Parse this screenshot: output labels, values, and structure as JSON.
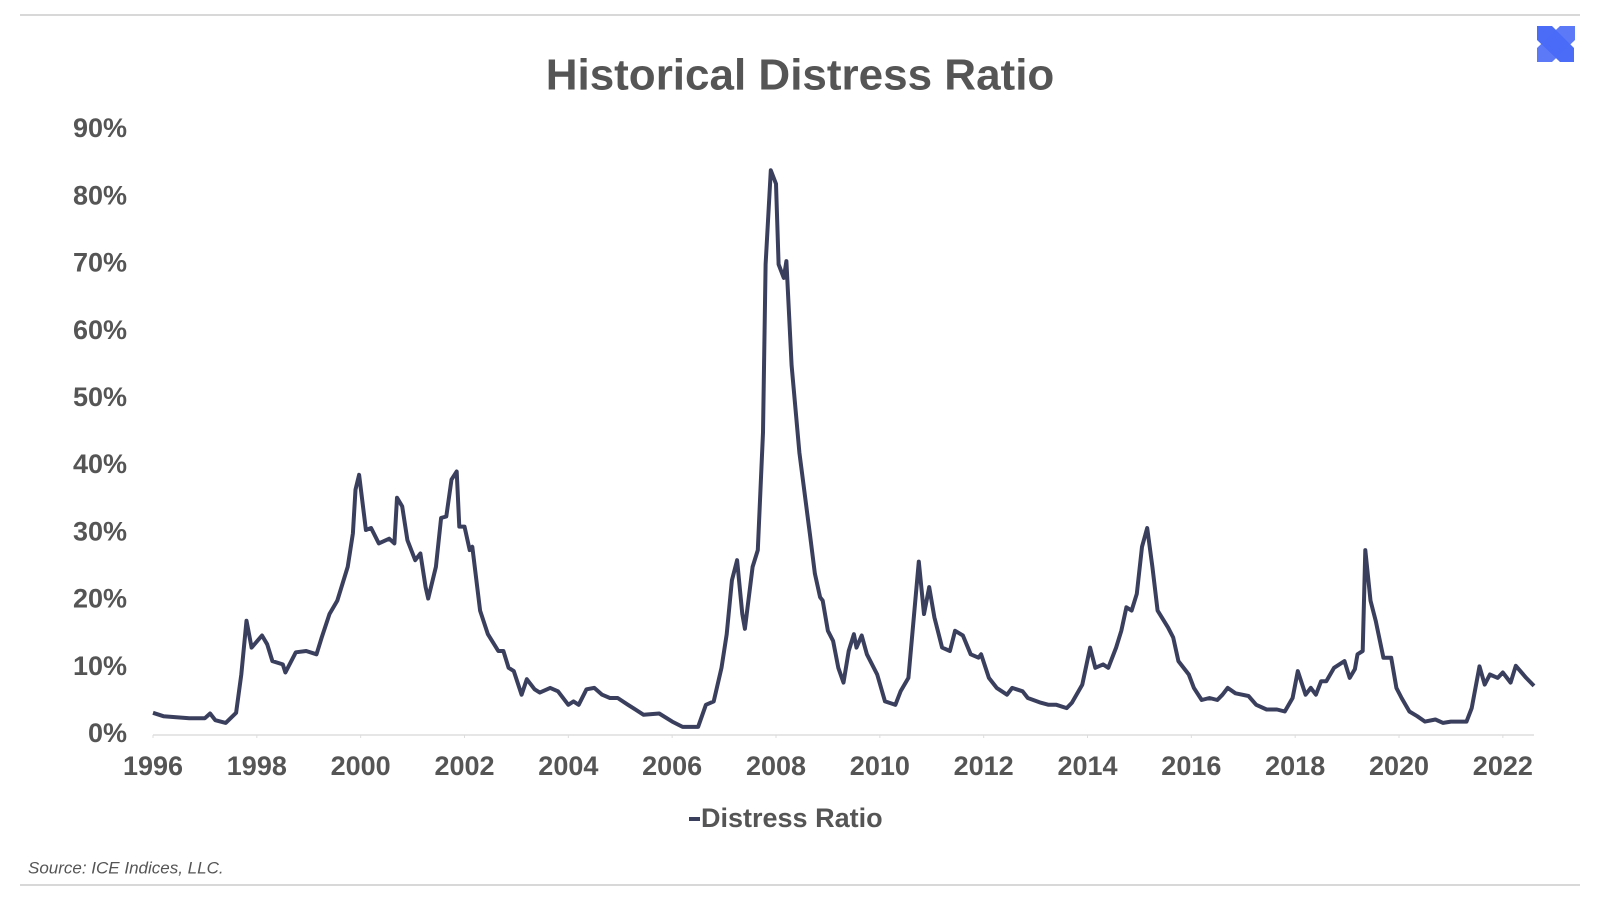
{
  "chart_data": {
    "type": "line",
    "title": "Historical Distress Ratio",
    "source": "Source: ICE Indices, LLC.",
    "series": [
      {
        "name": "Distress Ratio",
        "color": "#3b3f5e",
        "x": [
          1996.0,
          1996.2,
          1996.7,
          1997.0,
          1997.1,
          1997.2,
          1997.4,
          1997.6,
          1997.7,
          1997.8,
          1997.9,
          1998.1,
          1998.2,
          1998.3,
          1998.5,
          1998.55,
          1998.75,
          1998.95,
          1999.15,
          1999.25,
          1999.4,
          1999.55,
          1999.75,
          1999.85,
          1999.9,
          1999.97,
          2000.1,
          2000.2,
          2000.35,
          2000.55,
          2000.65,
          2000.7,
          2000.8,
          2000.9,
          2001.05,
          2001.15,
          2001.25,
          2001.3,
          2001.45,
          2001.55,
          2001.65,
          2001.75,
          2001.85,
          2001.9,
          2002.0,
          2002.1,
          2002.15,
          2002.3,
          2002.45,
          2002.65,
          2002.75,
          2002.85,
          2002.95,
          2003.1,
          2003.2,
          2003.35,
          2003.45,
          2003.65,
          2003.8,
          2004.0,
          2004.1,
          2004.2,
          2004.35,
          2004.5,
          2004.65,
          2004.8,
          2004.95,
          2005.15,
          2005.45,
          2005.75,
          2006.0,
          2006.2,
          2006.5,
          2006.65,
          2006.8,
          2006.95,
          2007.05,
          2007.15,
          2007.25,
          2007.35,
          2007.4,
          2007.55,
          2007.65,
          2007.75,
          2007.8,
          2007.9,
          2008.0,
          2008.05,
          2008.15,
          2008.2,
          2008.3,
          2008.45,
          2008.6,
          2008.65,
          2008.75,
          2008.85,
          2008.9,
          2009.0,
          2009.1,
          2009.2,
          2009.3,
          2009.4,
          2009.5,
          2009.55,
          2009.65,
          2009.75,
          2009.95,
          2010.1,
          2010.3,
          2010.4,
          2010.55,
          2010.75,
          2010.85,
          2010.95,
          2011.05,
          2011.2,
          2011.35,
          2011.45,
          2011.6,
          2011.75,
          2011.9,
          2011.95,
          2012.1,
          2012.25,
          2012.45,
          2012.55,
          2012.75,
          2012.85,
          2013.1,
          2013.25,
          2013.4,
          2013.6,
          2013.7,
          2013.9,
          2014.05,
          2014.15,
          2014.3,
          2014.4,
          2014.55,
          2014.65,
          2014.75,
          2014.85,
          2014.95,
          2015.05,
          2015.15,
          2015.25,
          2015.35,
          2015.55,
          2015.65,
          2015.75,
          2015.95,
          2016.05,
          2016.2,
          2016.35,
          2016.5,
          2016.6,
          2016.7,
          2016.85,
          2017.1,
          2017.25,
          2017.45,
          2017.65,
          2017.8,
          2017.95,
          2018.05,
          2018.2,
          2018.3,
          2018.4,
          2018.5,
          2018.6,
          2018.75,
          2018.85,
          2018.95,
          2019.05,
          2019.15,
          2019.2,
          2019.3,
          2019.35,
          2019.45,
          2019.55,
          2019.7,
          2019.85,
          2019.95,
          2020.05,
          2020.2,
          2020.35,
          2020.5,
          2020.7,
          2020.85,
          2021.0,
          2021.2,
          2021.3,
          2021.4,
          2021.55,
          2021.65,
          2021.75,
          2021.9,
          2022.0,
          2022.15,
          2022.25,
          2022.45,
          2022.6
        ],
        "values": [
          3.3,
          2.8,
          2.5,
          2.5,
          3.2,
          2.2,
          1.8,
          3.3,
          9,
          17,
          13,
          14.8,
          13.5,
          11,
          10.5,
          9.3,
          12.3,
          12.5,
          12,
          14.5,
          18,
          20,
          25,
          30,
          36.5,
          38.7,
          30.5,
          30.8,
          28.5,
          29.2,
          28.5,
          35.3,
          34,
          29,
          26,
          27,
          22,
          20.3,
          25,
          32.3,
          32.5,
          38,
          39.2,
          31,
          31,
          27.5,
          28,
          18.5,
          15,
          12.5,
          12.5,
          10,
          9.5,
          6,
          8.3,
          6.8,
          6.3,
          7,
          6.5,
          4.5,
          5,
          4.5,
          6.8,
          7,
          6,
          5.5,
          5.5,
          4.5,
          3,
          3.2,
          2,
          1.2,
          1.2,
          4.5,
          5,
          10,
          15,
          23,
          26,
          18,
          15.8,
          25,
          27.5,
          45,
          70,
          84,
          82,
          70,
          68,
          70.5,
          55,
          42,
          33,
          30,
          24,
          20.5,
          20,
          15.5,
          14,
          10,
          7.8,
          12.5,
          15,
          13,
          14.8,
          12,
          9,
          5,
          4.5,
          6.5,
          8.5,
          25.8,
          18,
          22,
          17.5,
          13,
          12.5,
          15.5,
          14.8,
          12,
          11.5,
          12,
          8.5,
          7,
          6,
          7,
          6.5,
          5.5,
          4.8,
          4.5,
          4.5,
          4,
          4.8,
          7.5,
          13,
          10,
          10.5,
          10,
          13,
          15.5,
          19,
          18.5,
          21,
          28,
          30.8,
          25,
          18.5,
          16,
          14.5,
          11,
          9,
          7,
          5.2,
          5.5,
          5.2,
          6,
          7,
          6.2,
          5.8,
          4.5,
          3.8,
          3.8,
          3.5,
          5.5,
          9.5,
          6,
          7,
          6,
          8,
          8,
          10,
          10.5,
          11,
          8.5,
          9.8,
          12,
          12.5,
          27.5,
          20,
          17,
          11.5,
          11.5,
          7,
          5.5,
          3.5,
          2.8,
          2,
          2.3,
          1.8,
          2,
          2,
          2,
          4,
          10.2,
          7.5,
          9,
          8.5,
          9.3,
          7.8,
          10.3,
          8.5,
          7.3
        ]
      }
    ],
    "xlim": [
      1996,
      2022.6
    ],
    "xticks": [
      1996,
      1998,
      2000,
      2002,
      2004,
      2006,
      2008,
      2010,
      2012,
      2014,
      2016,
      2018,
      2020,
      2022
    ],
    "ylim": [
      0,
      90
    ],
    "yticks": [
      {
        "value": 0,
        "label": "0%"
      },
      {
        "value": 10,
        "label": "10%"
      },
      {
        "value": 20,
        "label": "20%"
      },
      {
        "value": 30,
        "label": "30%"
      },
      {
        "value": 40,
        "label": "40%"
      },
      {
        "value": 50,
        "label": "50%"
      },
      {
        "value": 60,
        "label": "60%"
      },
      {
        "value": 70,
        "label": "70%"
      },
      {
        "value": 80,
        "label": "80%"
      },
      {
        "value": 90,
        "label": "90%"
      }
    ],
    "legend": "bottom"
  }
}
